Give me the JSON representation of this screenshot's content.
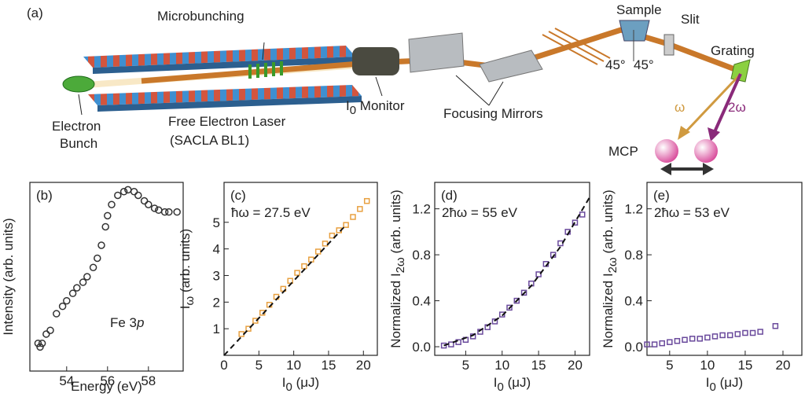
{
  "diagram": {
    "panel_label": "(a)",
    "microbunching": "Microbunching",
    "sample": "Sample",
    "slit": "Slit",
    "grating": "Grating",
    "angle_left": "45°",
    "angle_right": "45°",
    "electron_bunch": [
      "Electron",
      "Bunch"
    ],
    "fel": [
      "Free Electron Laser",
      "(SACLA BL1)"
    ],
    "monitor": [
      "I",
      "0",
      " Monitor"
    ],
    "mirrors": "Focusing Mirrors",
    "omega": "ω",
    "two_omega": "2ω",
    "mcp": "MCP"
  },
  "chart_data": [
    {
      "type": "scatter",
      "panel": "(b)",
      "xlabel": [
        "Energy (eV)"
      ],
      "ylabel": [
        "Intensity (arb. units)"
      ],
      "annotation": [
        "Fe 3",
        "p"
      ],
      "color": "#333333",
      "marker": "circle",
      "x": [
        52.6,
        52.7,
        52.8,
        53.0,
        53.2,
        53.5,
        53.8,
        54.0,
        54.3,
        54.5,
        54.8,
        55.0,
        55.3,
        55.5,
        55.7,
        55.9,
        56.0,
        56.2,
        56.5,
        56.8,
        57.0,
        57.3,
        57.5,
        57.8,
        58.0,
        58.3,
        58.5,
        58.8,
        59.0,
        59.4
      ],
      "values": [
        0.15,
        0.13,
        0.15,
        0.2,
        0.22,
        0.31,
        0.35,
        0.38,
        0.42,
        0.45,
        0.48,
        0.51,
        0.56,
        0.61,
        0.68,
        0.78,
        0.84,
        0.9,
        0.95,
        0.97,
        0.98,
        0.97,
        0.95,
        0.92,
        0.9,
        0.88,
        0.87,
        0.86,
        0.86,
        0.86
      ],
      "xlim": [
        52.2,
        59.7
      ],
      "ylim": [
        0,
        1.02
      ],
      "xticks": [
        54,
        56,
        58
      ],
      "yticks": []
    },
    {
      "type": "scatter",
      "panel": "(c)",
      "xlabel": [
        "I",
        "0",
        " (μJ)"
      ],
      "ylabel": [
        "I",
        "ω",
        " (arb. units)"
      ],
      "annotation": [
        "ħω = 27.5 eV"
      ],
      "color": "#e8a040",
      "marker": "square",
      "x": [
        2.5,
        3.5,
        4.5,
        5.5,
        6.5,
        7.5,
        8.5,
        9.5,
        10.5,
        11.5,
        12.5,
        13.5,
        14.5,
        15.5,
        16.5,
        17.5,
        18.5,
        19.5,
        20.5
      ],
      "values": [
        0.8,
        1.0,
        1.3,
        1.6,
        1.9,
        2.2,
        2.5,
        2.8,
        3.1,
        3.35,
        3.6,
        3.9,
        4.2,
        4.5,
        4.7,
        4.9,
        5.2,
        5.5,
        5.8
      ],
      "fit": {
        "x": [
          0,
          17.5
        ],
        "values": [
          0,
          4.9
        ]
      },
      "xlim": [
        0,
        22
      ],
      "ylim": [
        0,
        6.5
      ],
      "xticks": [
        0,
        5,
        10,
        15,
        20
      ],
      "yticks": [
        1,
        2,
        3,
        4,
        5
      ]
    },
    {
      "type": "scatter",
      "panel": "(d)",
      "xlabel": [
        "I",
        "0",
        " (μJ)"
      ],
      "ylabel": [
        "Normalized I",
        "2ω",
        " (arb. units)"
      ],
      "annotation": [
        "2ħω = 55 eV"
      ],
      "color": "#6a4a9c",
      "marker": "square",
      "x": [
        2,
        3,
        4,
        5,
        6,
        7,
        8,
        9,
        10,
        11,
        12,
        13,
        14,
        15,
        16,
        17,
        18,
        19,
        20,
        21
      ],
      "values": [
        0.01,
        0.02,
        0.04,
        0.06,
        0.09,
        0.13,
        0.17,
        0.22,
        0.28,
        0.34,
        0.4,
        0.47,
        0.55,
        0.63,
        0.72,
        0.8,
        0.9,
        1.0,
        1.08,
        1.15
      ],
      "fit": {
        "x": [
          2,
          6,
          10,
          14,
          18,
          22
        ],
        "values": [
          0.01,
          0.1,
          0.27,
          0.53,
          0.87,
          1.3
        ]
      },
      "xlim": [
        0.75,
        22
      ],
      "ylim": [
        -0.075,
        1.43
      ],
      "xticks": [
        5,
        10,
        15,
        20
      ],
      "yticks": [
        {
          "value": 0,
          "label": "0.0"
        },
        0.4,
        0.8,
        1.2
      ]
    },
    {
      "type": "scatter",
      "panel": "(e)",
      "xlabel": [
        "I",
        "0",
        " (μJ)"
      ],
      "ylabel": [
        "Normalized I",
        "2ω",
        " (arb. units)"
      ],
      "annotation": [
        "2ħω = 53 eV"
      ],
      "color": "#6a4a9c",
      "marker": "square",
      "x": [
        2,
        3,
        4,
        5,
        6,
        7,
        8,
        9,
        10,
        11,
        12,
        13,
        14,
        15,
        16,
        17,
        19
      ],
      "values": [
        0.02,
        0.02,
        0.03,
        0.04,
        0.05,
        0.06,
        0.07,
        0.07,
        0.08,
        0.09,
        0.1,
        0.1,
        0.11,
        0.12,
        0.12,
        0.13,
        0.18
      ],
      "xlim": [
        2,
        22.5
      ],
      "ylim": [
        -0.075,
        1.43
      ],
      "xticks": [
        5,
        10,
        15,
        20
      ],
      "yticks": [
        {
          "value": 0,
          "label": "0.0"
        },
        0.4,
        0.8,
        1.2
      ]
    }
  ]
}
